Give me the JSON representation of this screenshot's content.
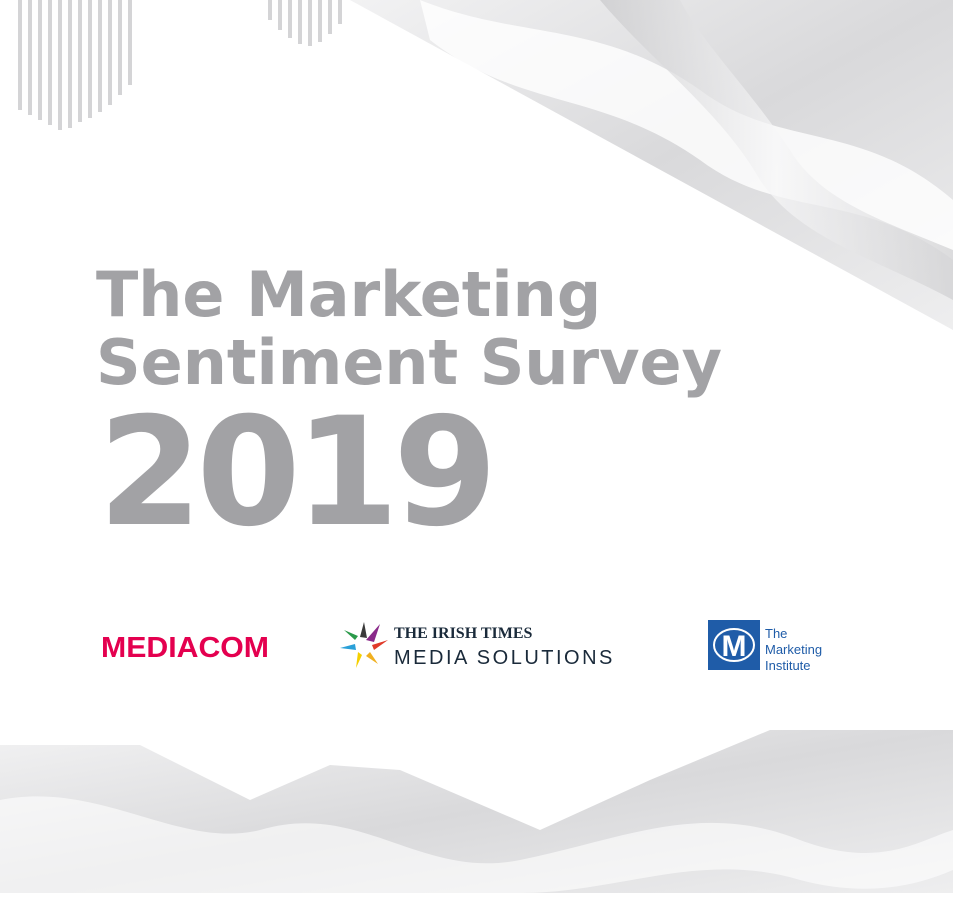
{
  "title": {
    "line1": "The Marketing",
    "line2": "Sentiment Survey",
    "year": "2019"
  },
  "logos": {
    "mediacom": "MEDIACOM",
    "irish_times": {
      "name": "THE IRISH TIMES",
      "division": "MEDIA SOLUTIONS"
    },
    "marketing_institute": {
      "mark": "M",
      "lines": [
        "The",
        "Marketing",
        "Institute"
      ]
    }
  }
}
